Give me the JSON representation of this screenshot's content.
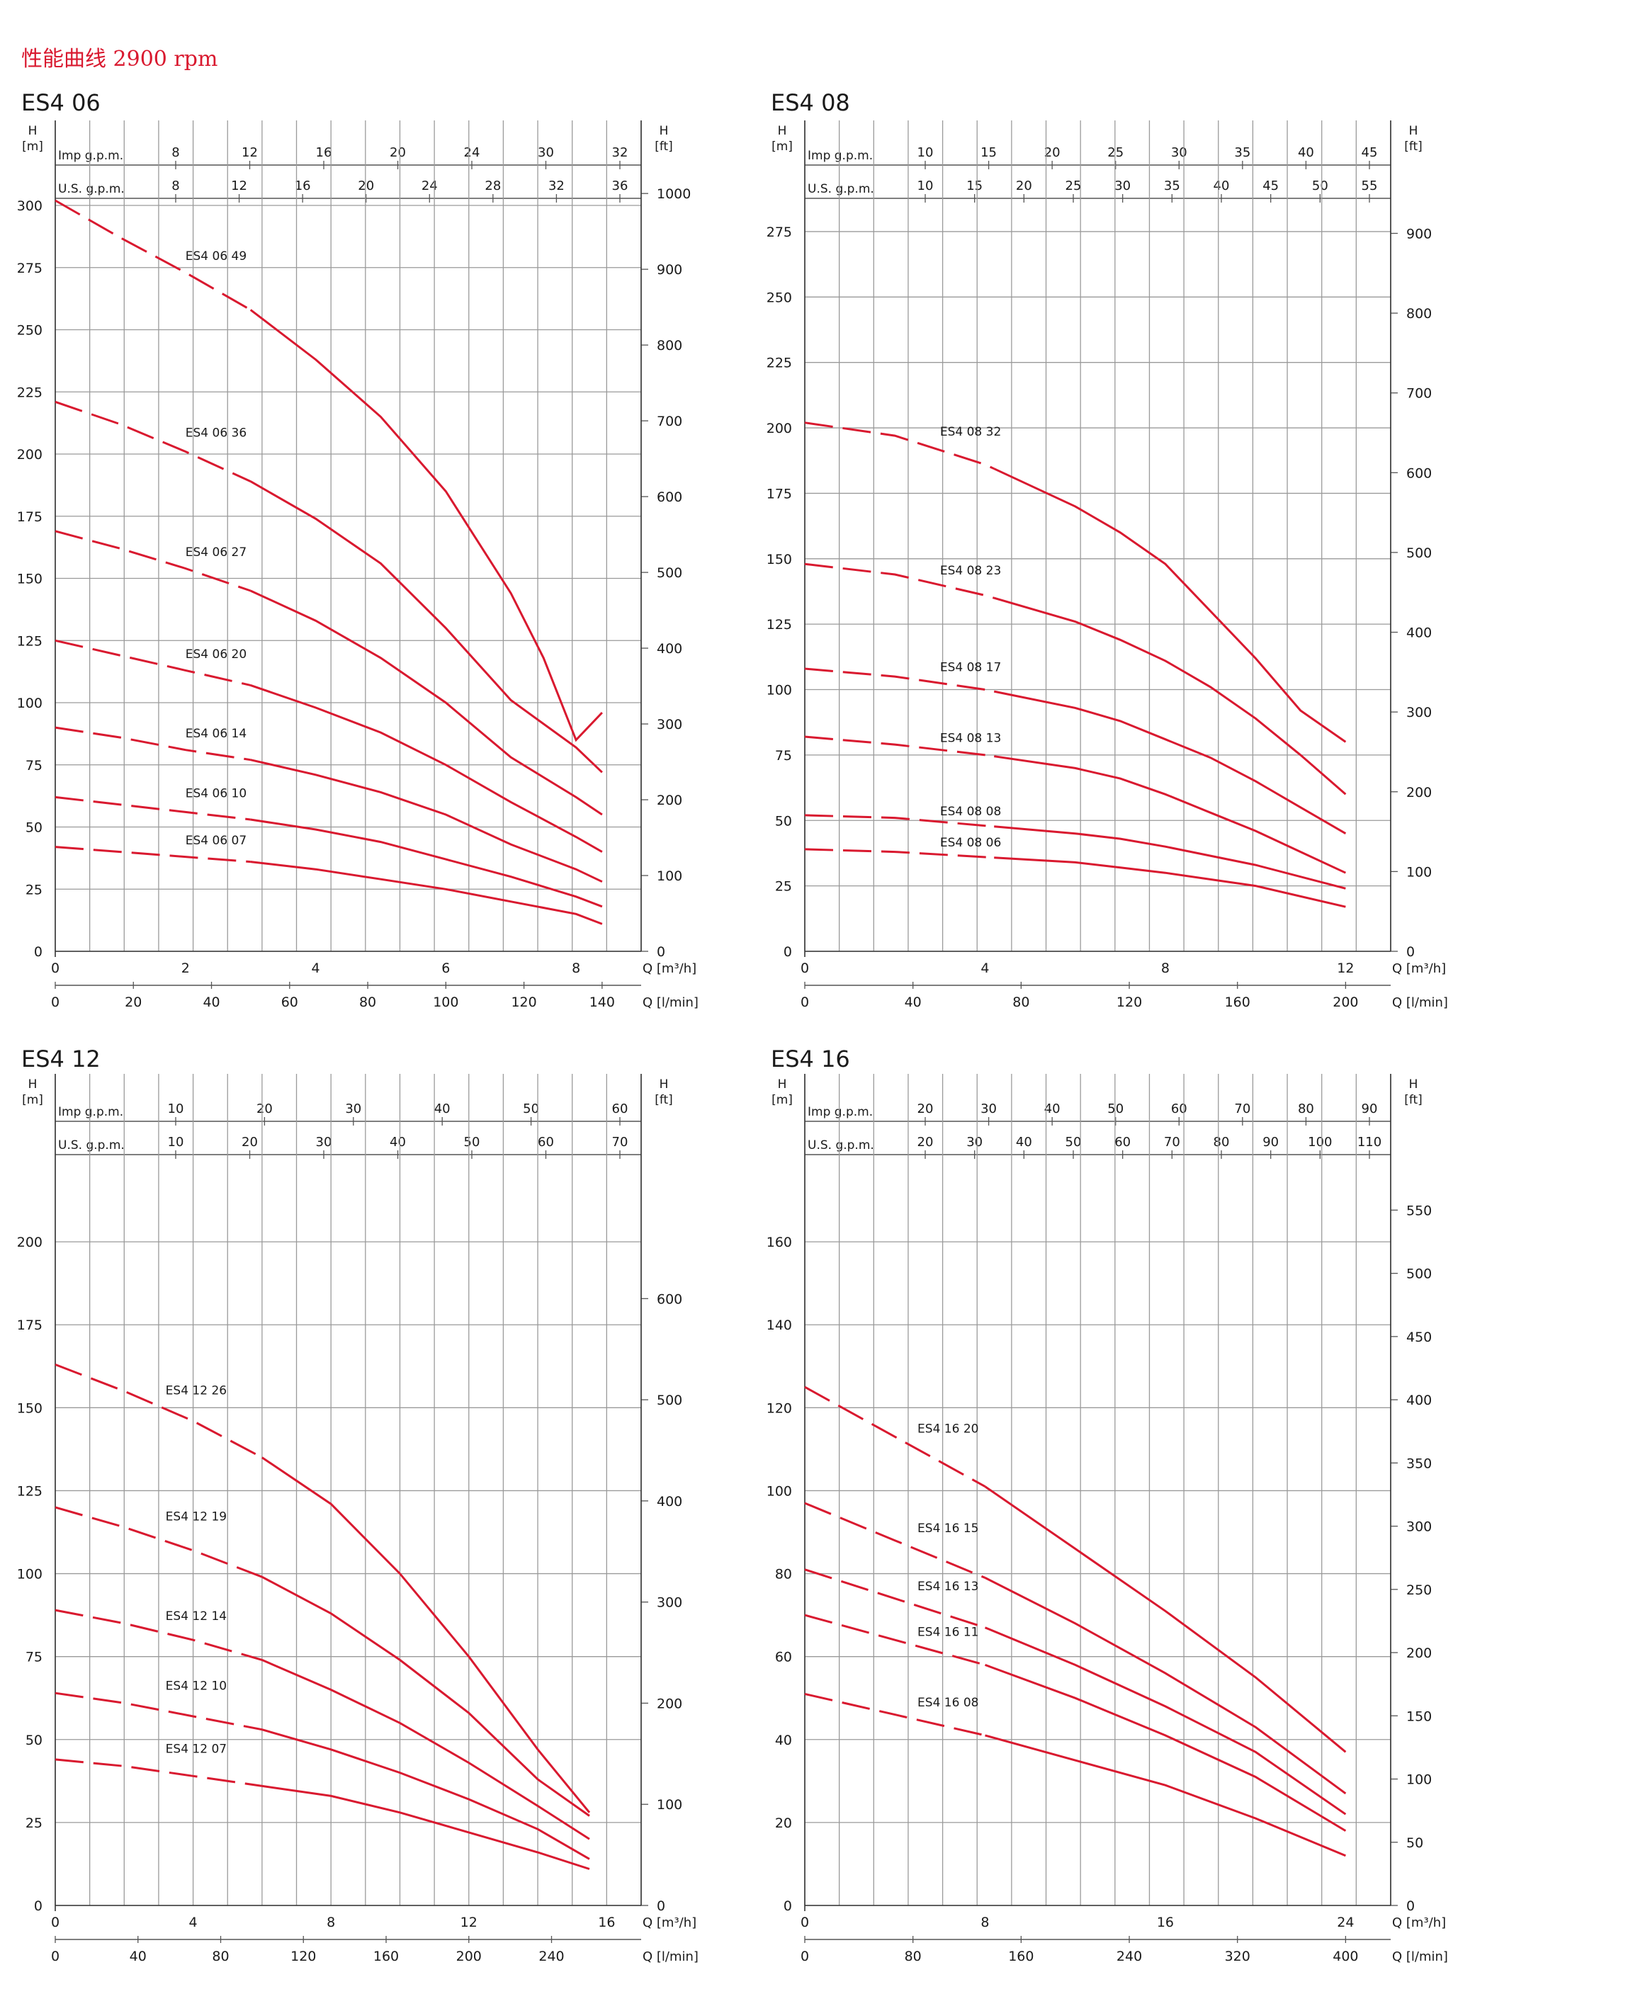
{
  "page": {
    "title": "性能曲线 2900 rpm"
  },
  "colors": {
    "curve": "#d9192f",
    "grid": "#9a9a9a",
    "text": "#1a1a1a"
  },
  "chart_data": [
    {
      "type": "line",
      "title": "ES4 06",
      "top_axis_1": {
        "label": "Imp g.p.m.",
        "ticks": [
          8,
          12,
          16,
          20,
          24,
          30,
          32
        ]
      },
      "top_axis_2": {
        "label": "U.S. g.p.m.",
        "ticks": [
          8,
          12,
          16,
          20,
          24,
          28,
          32,
          36
        ]
      },
      "left_axis": {
        "label_line1": "H",
        "label_line2": "[m]",
        "ticks": [
          0,
          25,
          50,
          75,
          100,
          125,
          150,
          175,
          200,
          225,
          250,
          275,
          300
        ],
        "ylim": [
          0,
          300
        ]
      },
      "right_axis": {
        "label_line1": "H",
        "label_line2": "[ft]",
        "ticks": [
          0,
          100,
          200,
          300,
          400,
          500,
          600,
          700,
          800,
          900,
          1000
        ]
      },
      "bottom_axis_1": {
        "label": "Q [m³/h]",
        "ticks": [
          0,
          2,
          4,
          6,
          8
        ],
        "xlim": [
          0,
          9
        ]
      },
      "bottom_axis_2": {
        "label": "Q [l/min]",
        "ticks": [
          0,
          20,
          40,
          60,
          80,
          100,
          120,
          140
        ]
      },
      "series": [
        {
          "name": "ES4 06 49",
          "label_x": 2.0,
          "label_y": 278,
          "dash_end": 3.0,
          "x": [
            0,
            1,
            2,
            3,
            4,
            5,
            6,
            7,
            7.5,
            8,
            8.4
          ],
          "y": [
            302,
            287,
            273,
            258,
            238,
            215,
            185,
            144,
            118,
            85,
            96
          ]
        },
        {
          "name": "ES4 06 36",
          "label_x": 2.0,
          "label_y": 207,
          "dash_end": 3.0,
          "x": [
            0,
            1,
            2,
            3,
            4,
            5,
            6,
            7,
            8,
            8.4
          ],
          "y": [
            221,
            212,
            201,
            189,
            174,
            156,
            130,
            101,
            82,
            72
          ]
        },
        {
          "name": "ES4 06 27",
          "label_x": 2.0,
          "label_y": 159,
          "dash_end": 3.0,
          "x": [
            0,
            1,
            2,
            3,
            4,
            5,
            6,
            7,
            8,
            8.4
          ],
          "y": [
            169,
            162,
            154,
            145,
            133,
            118,
            100,
            78,
            62,
            55
          ]
        },
        {
          "name": "ES4 06 20",
          "label_x": 2.0,
          "label_y": 118,
          "dash_end": 3.0,
          "x": [
            0,
            1,
            2,
            3,
            4,
            5,
            6,
            7,
            8,
            8.4
          ],
          "y": [
            125,
            119,
            113,
            107,
            98,
            88,
            75,
            60,
            46,
            40
          ]
        },
        {
          "name": "ES4 06 14",
          "label_x": 2.0,
          "label_y": 86,
          "dash_end": 3.0,
          "x": [
            0,
            1,
            2,
            3,
            4,
            5,
            6,
            7,
            8,
            8.4
          ],
          "y": [
            90,
            86,
            81,
            77,
            71,
            64,
            55,
            43,
            33,
            28
          ]
        },
        {
          "name": "ES4 06 10",
          "label_x": 2.0,
          "label_y": 62,
          "dash_end": 3.0,
          "x": [
            0,
            1,
            2,
            3,
            4,
            5,
            6,
            7,
            8,
            8.4
          ],
          "y": [
            62,
            59,
            56,
            53,
            49,
            44,
            37,
            30,
            22,
            18
          ]
        },
        {
          "name": "ES4 06 07",
          "label_x": 2.0,
          "label_y": 43,
          "dash_end": 3.0,
          "x": [
            0,
            1,
            2,
            3,
            4,
            5,
            6,
            7,
            8,
            8.4
          ],
          "y": [
            42,
            40,
            38,
            36,
            33,
            29,
            25,
            20,
            15,
            11
          ]
        }
      ]
    },
    {
      "type": "line",
      "title": "ES4 08",
      "top_axis_1": {
        "label": "Imp g.p.m.",
        "ticks": [
          10,
          15,
          20,
          25,
          30,
          35,
          40,
          45
        ]
      },
      "top_axis_2": {
        "label": "U.S. g.p.m.",
        "ticks": [
          10,
          15,
          20,
          25,
          30,
          35,
          40,
          45,
          50,
          55
        ]
      },
      "left_axis": {
        "label_line1": "H",
        "label_line2": "[m]",
        "ticks": [
          0,
          25,
          50,
          75,
          100,
          125,
          150,
          175,
          200,
          225,
          250,
          275
        ],
        "ylim": [
          0,
          285
        ]
      },
      "right_axis": {
        "label_line1": "H",
        "label_line2": "[ft]",
        "ticks": [
          0,
          100,
          200,
          300,
          400,
          500,
          600,
          700,
          800,
          900
        ]
      },
      "bottom_axis_1": {
        "label": "Q [m³/h]",
        "ticks": [
          0,
          4,
          8,
          12
        ],
        "xlim": [
          0,
          13
        ]
      },
      "bottom_axis_2": {
        "label": "Q [l/min]",
        "ticks": [
          0,
          40,
          80,
          120,
          160,
          200
        ]
      },
      "series": [
        {
          "name": "ES4 08 32",
          "label_x": 3.0,
          "label_y": 197,
          "dash_end": 4.2,
          "x": [
            0,
            2,
            4,
            6,
            7,
            8,
            10,
            11,
            12
          ],
          "y": [
            202,
            197,
            186,
            170,
            160,
            148,
            112,
            92,
            80
          ]
        },
        {
          "name": "ES4 08 23",
          "label_x": 3.0,
          "label_y": 144,
          "dash_end": 4.2,
          "x": [
            0,
            2,
            4,
            6,
            7,
            8,
            9,
            10,
            11,
            12
          ],
          "y": [
            148,
            144,
            136,
            126,
            119,
            111,
            101,
            89,
            75,
            60
          ]
        },
        {
          "name": "ES4 08 17",
          "label_x": 3.0,
          "label_y": 107,
          "dash_end": 4.2,
          "x": [
            0,
            2,
            4,
            6,
            7,
            8,
            9,
            10,
            11,
            12
          ],
          "y": [
            108,
            105,
            100,
            93,
            88,
            81,
            74,
            65,
            55,
            45
          ]
        },
        {
          "name": "ES4 08 13",
          "label_x": 3.0,
          "label_y": 80,
          "dash_end": 4.2,
          "x": [
            0,
            2,
            4,
            6,
            7,
            8,
            9,
            10,
            11,
            12
          ],
          "y": [
            82,
            79,
            75,
            70,
            66,
            60,
            53,
            46,
            38,
            30
          ]
        },
        {
          "name": "ES4 08 08",
          "label_x": 3.0,
          "label_y": 52,
          "dash_end": 4.2,
          "x": [
            0,
            2,
            4,
            6,
            7,
            8,
            10,
            12
          ],
          "y": [
            52,
            51,
            48,
            45,
            43,
            40,
            33,
            24
          ]
        },
        {
          "name": "ES4 08 06",
          "label_x": 3.0,
          "label_y": 40,
          "dash_end": 4.2,
          "x": [
            0,
            2,
            4,
            6,
            7,
            8,
            10,
            12
          ],
          "y": [
            39,
            38,
            36,
            34,
            32,
            30,
            25,
            17
          ]
        }
      ]
    },
    {
      "type": "line",
      "title": "ES4 12",
      "top_axis_1": {
        "label": "Imp g.p.m.",
        "ticks": [
          10,
          20,
          30,
          40,
          50,
          60
        ]
      },
      "top_axis_2": {
        "label": "U.S. g.p.m.",
        "ticks": [
          10,
          20,
          30,
          40,
          50,
          60,
          70
        ]
      },
      "left_axis": {
        "label_line1": "H",
        "label_line2": "[m]",
        "ticks": [
          0,
          25,
          50,
          75,
          100,
          125,
          150,
          175,
          200
        ],
        "ylim": [
          0,
          225
        ]
      },
      "right_axis": {
        "label_line1": "H",
        "label_line2": "[ft]",
        "ticks": [
          0,
          100,
          200,
          300,
          400,
          500,
          600
        ]
      },
      "bottom_axis_1": {
        "label": "Q [m³/h]",
        "ticks": [
          0,
          4,
          8,
          12,
          16
        ],
        "xlim": [
          0,
          17
        ]
      },
      "bottom_axis_2": {
        "label": "Q [l/min]",
        "ticks": [
          0,
          40,
          80,
          120,
          160,
          200,
          240
        ]
      },
      "series": [
        {
          "name": "ES4 12 26",
          "label_x": 3.2,
          "label_y": 154,
          "dash_end": 6.0,
          "x": [
            0,
            2,
            4,
            6,
            8,
            10,
            12,
            14,
            15.5
          ],
          "y": [
            163,
            155,
            146,
            135,
            121,
            100,
            75,
            47,
            28
          ]
        },
        {
          "name": "ES4 12 19",
          "label_x": 3.2,
          "label_y": 116,
          "dash_end": 6.0,
          "x": [
            0,
            2,
            4,
            6,
            8,
            10,
            12,
            14,
            15.5
          ],
          "y": [
            120,
            114,
            107,
            99,
            88,
            74,
            58,
            38,
            27
          ]
        },
        {
          "name": "ES4 12 14",
          "label_x": 3.2,
          "label_y": 86,
          "dash_end": 6.0,
          "x": [
            0,
            2,
            4,
            6,
            8,
            10,
            12,
            14,
            15.5
          ],
          "y": [
            89,
            85,
            80,
            74,
            65,
            55,
            43,
            30,
            20
          ]
        },
        {
          "name": "ES4 12 10",
          "label_x": 3.2,
          "label_y": 65,
          "dash_end": 6.0,
          "x": [
            0,
            2,
            4,
            6,
            8,
            10,
            12,
            14,
            15.5
          ],
          "y": [
            64,
            61,
            57,
            53,
            47,
            40,
            32,
            23,
            14
          ]
        },
        {
          "name": "ES4 12 07",
          "label_x": 3.2,
          "label_y": 46,
          "dash_end": 6.0,
          "x": [
            0,
            2,
            4,
            6,
            8,
            10,
            12,
            14,
            15.5
          ],
          "y": [
            44,
            42,
            39,
            36,
            33,
            28,
            22,
            16,
            11
          ]
        }
      ]
    },
    {
      "type": "line",
      "title": "ES4 16",
      "top_axis_1": {
        "label": "Imp g.p.m.",
        "ticks": [
          20,
          30,
          40,
          50,
          60,
          70,
          80,
          90
        ]
      },
      "top_axis_2": {
        "label": "U.S. g.p.m.",
        "ticks": [
          20,
          30,
          40,
          50,
          60,
          70,
          80,
          90,
          100,
          110
        ]
      },
      "left_axis": {
        "label_line1": "H",
        "label_line2": "[m]",
        "ticks": [
          0,
          20,
          40,
          60,
          80,
          100,
          120,
          140,
          160
        ],
        "ylim": [
          0,
          180
        ]
      },
      "right_axis": {
        "label_line1": "H",
        "label_line2": "[ft]",
        "ticks": [
          0,
          50,
          100,
          150,
          200,
          250,
          300,
          350,
          400,
          450,
          500,
          550
        ]
      },
      "bottom_axis_1": {
        "label": "Q [m³/h]",
        "ticks": [
          0,
          8,
          16,
          24
        ],
        "xlim": [
          0,
          26
        ]
      },
      "bottom_axis_2": {
        "label": "Q [l/min]",
        "ticks": [
          0,
          80,
          160,
          240,
          320,
          400
        ]
      },
      "series": [
        {
          "name": "ES4 16 20",
          "label_x": 5.0,
          "label_y": 114,
          "dash_end": 8.0,
          "x": [
            0,
            4,
            8,
            12,
            16,
            20,
            24
          ],
          "y": [
            125,
            113,
            101,
            86,
            71,
            55,
            37
          ]
        },
        {
          "name": "ES4 16 15",
          "label_x": 5.0,
          "label_y": 90,
          "dash_end": 8.0,
          "x": [
            0,
            4,
            8,
            12,
            16,
            20,
            24
          ],
          "y": [
            97,
            88,
            79,
            68,
            56,
            43,
            27
          ]
        },
        {
          "name": "ES4 16 13",
          "label_x": 5.0,
          "label_y": 76,
          "dash_end": 8.0,
          "x": [
            0,
            4,
            8,
            12,
            16,
            20,
            24
          ],
          "y": [
            81,
            74,
            67,
            58,
            48,
            37,
            22
          ]
        },
        {
          "name": "ES4 16 11",
          "label_x": 5.0,
          "label_y": 65,
          "dash_end": 8.0,
          "x": [
            0,
            4,
            8,
            12,
            16,
            20,
            24
          ],
          "y": [
            70,
            64,
            58,
            50,
            41,
            31,
            18
          ]
        },
        {
          "name": "ES4 16 08",
          "label_x": 5.0,
          "label_y": 48,
          "dash_end": 8.0,
          "x": [
            0,
            4,
            8,
            12,
            16,
            20,
            24
          ],
          "y": [
            51,
            46,
            41,
            35,
            29,
            21,
            12
          ]
        }
      ]
    }
  ]
}
